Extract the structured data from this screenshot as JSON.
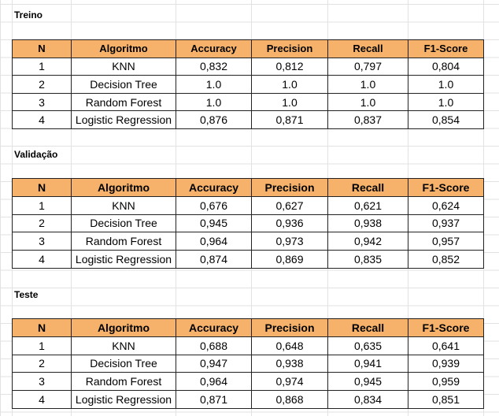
{
  "headers": [
    "N",
    "Algoritmo",
    "Accuracy",
    "Precision",
    "Recall",
    "F1-Score"
  ],
  "sections": [
    {
      "title": "Treino",
      "rows": [
        [
          "1",
          "KNN",
          "0,832",
          "0,812",
          "0,797",
          "0,804"
        ],
        [
          "2",
          "Decision Tree",
          "1.0",
          "1.0",
          "1.0",
          "1.0"
        ],
        [
          "3",
          "Random Forest",
          "1.0",
          "1.0",
          "1.0",
          "1.0"
        ],
        [
          "4",
          "Logistic Regression",
          "0,876",
          "0,871",
          "0,837",
          "0,854"
        ]
      ]
    },
    {
      "title": "Validação",
      "rows": [
        [
          "1",
          "KNN",
          "0,676",
          "0,627",
          "0,621",
          "0,624"
        ],
        [
          "2",
          "Decision Tree",
          "0,945",
          "0,936",
          "0,938",
          "0,937"
        ],
        [
          "3",
          "Random Forest",
          "0,964",
          "0,973",
          "0,942",
          "0,957"
        ],
        [
          "4",
          "Logistic Regression",
          "0,874",
          "0,869",
          "0,835",
          "0,852"
        ]
      ]
    },
    {
      "title": "Teste",
      "rows": [
        [
          "1",
          "KNN",
          "0,688",
          "0,648",
          "0,635",
          "0,641"
        ],
        [
          "2",
          "Decision Tree",
          "0,947",
          "0,938",
          "0,941",
          "0,939"
        ],
        [
          "3",
          "Random Forest",
          "0,964",
          "0,974",
          "0,945",
          "0,959"
        ],
        [
          "4",
          "Logistic Regression",
          "0,871",
          "0,868",
          "0,834",
          "0,851"
        ]
      ]
    }
  ],
  "colors": {
    "header_fill": "#f6b26b",
    "border": "#222222",
    "grid": "#e2e2e2"
  }
}
